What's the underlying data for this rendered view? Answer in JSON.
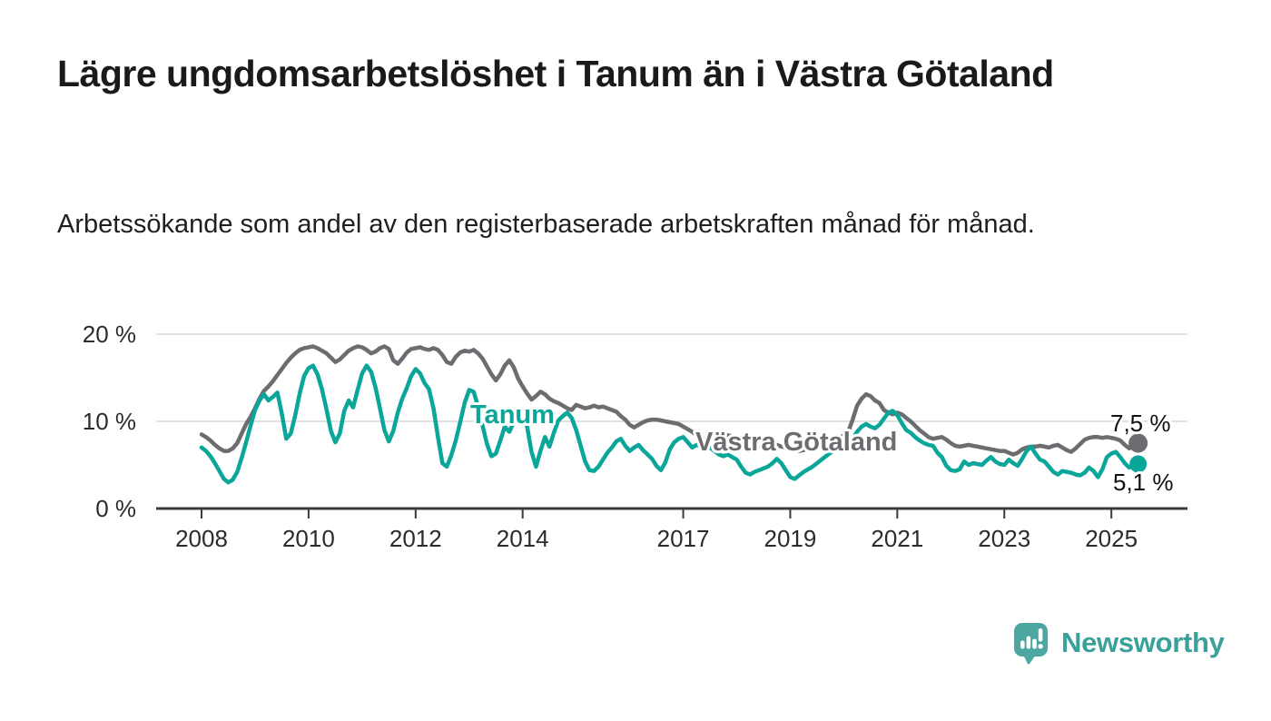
{
  "page": {
    "title": "Lägre ungdomsarbetslöshet i Tanum än i Västra Götaland",
    "subtitle": "Arbetssökande som andel av den registerbaserade arbetskraften månad för månad."
  },
  "chart_data": {
    "type": "line",
    "unit": "%",
    "x_start": {
      "year": 2008,
      "month": 1
    },
    "x_interval": "monthly",
    "x_end": {
      "year": 2025,
      "month": 7
    },
    "ylim": [
      0,
      20
    ],
    "y_tick_values": [
      0,
      10,
      20
    ],
    "y_tick_labels": [
      "0 %",
      "10 %",
      "20 %"
    ],
    "x_tick_years": [
      2008,
      2010,
      2012,
      2014,
      2017,
      2019,
      2021,
      2023,
      2025
    ],
    "grid": true,
    "axis_color": "#3b3b3b",
    "grid_color": "#d9d9d9",
    "tick_label_color": "#2b2b2b",
    "end_label_color": "#111111",
    "series": [
      {
        "name": "Västra Götaland",
        "color": "#6d6d71",
        "end_label": "7,5 %",
        "end_value": 7.5,
        "values": [
          8.5,
          8.2,
          7.8,
          7.3,
          6.9,
          6.6,
          6.6,
          6.9,
          7.5,
          8.6,
          9.7,
          10.5,
          11.5,
          12.6,
          13.5,
          14.0,
          14.6,
          15.3,
          16.0,
          16.7,
          17.3,
          17.8,
          18.2,
          18.4,
          18.5,
          18.6,
          18.4,
          18.1,
          17.8,
          17.3,
          16.8,
          17.1,
          17.6,
          18.1,
          18.4,
          18.6,
          18.5,
          18.2,
          17.8,
          18.0,
          18.4,
          18.6,
          18.3,
          17.0,
          16.6,
          17.2,
          17.9,
          18.3,
          18.4,
          18.5,
          18.3,
          18.2,
          18.4,
          18.2,
          17.6,
          16.8,
          16.6,
          17.4,
          17.9,
          18.1,
          18.0,
          18.2,
          17.8,
          17.2,
          16.3,
          15.4,
          14.7,
          15.4,
          16.4,
          17.0,
          16.2,
          14.9,
          14.0,
          13.2,
          12.5,
          12.9,
          13.4,
          13.1,
          12.6,
          12.3,
          12.1,
          11.8,
          11.5,
          11.3,
          11.9,
          11.7,
          11.5,
          11.6,
          11.8,
          11.6,
          11.7,
          11.5,
          11.3,
          11.1,
          10.6,
          10.2,
          9.6,
          9.3,
          9.6,
          9.9,
          10.1,
          10.2,
          10.2,
          10.1,
          10.0,
          9.9,
          9.8,
          9.7,
          9.4,
          9.1,
          8.8,
          8.4,
          8.1,
          7.9,
          7.8,
          8.1,
          8.4,
          8.5,
          8.4,
          8.3,
          8.0,
          7.8,
          7.6,
          7.4,
          7.2,
          7.1,
          7.2,
          7.3,
          7.4,
          7.3,
          7.1,
          7.0,
          6.9,
          6.7,
          6.6,
          6.7,
          6.9,
          7.0,
          7.1,
          7.2,
          7.3,
          7.5,
          7.7,
          8.1,
          8.4,
          8.8,
          10.2,
          11.8,
          12.6,
          13.1,
          12.9,
          12.4,
          12.1,
          11.3,
          11.0,
          10.8,
          11.0,
          10.8,
          10.4,
          10.0,
          9.5,
          9.0,
          8.6,
          8.2,
          8.0,
          8.1,
          8.2,
          7.9,
          7.5,
          7.2,
          7.1,
          7.2,
          7.3,
          7.2,
          7.1,
          7.0,
          6.9,
          6.8,
          6.7,
          6.6,
          6.6,
          6.4,
          6.2,
          6.4,
          6.8,
          7.0,
          7.1,
          7.1,
          7.2,
          7.1,
          7.0,
          7.2,
          7.3,
          7.0,
          6.7,
          6.5,
          6.9,
          7.4,
          7.9,
          8.1,
          8.2,
          8.2,
          8.1,
          8.2,
          8.1,
          8.0,
          7.8,
          7.3,
          6.9,
          7.2,
          7.5
        ]
      },
      {
        "name": "Tanum",
        "color": "#0ba69a",
        "end_label": "5,1 %",
        "end_value": 5.1,
        "values": [
          7.0,
          6.6,
          6.0,
          5.2,
          4.3,
          3.4,
          3.0,
          3.3,
          4.2,
          5.8,
          7.6,
          9.5,
          11.3,
          12.4,
          13.1,
          12.4,
          12.8,
          13.3,
          10.9,
          8.0,
          8.6,
          10.7,
          13.2,
          15.2,
          16.1,
          16.4,
          15.4,
          13.7,
          11.4,
          8.9,
          7.6,
          8.6,
          11.2,
          12.4,
          11.6,
          13.6,
          15.5,
          16.4,
          15.7,
          13.9,
          11.5,
          9.0,
          7.7,
          8.9,
          11.0,
          12.6,
          13.8,
          15.2,
          16.0,
          15.5,
          14.4,
          13.7,
          11.5,
          8.2,
          5.2,
          4.8,
          6.1,
          7.8,
          9.9,
          12.1,
          13.6,
          13.4,
          11.7,
          9.5,
          7.4,
          6.0,
          6.3,
          7.8,
          9.4,
          8.8,
          9.9,
          10.6,
          10.8,
          9.4,
          6.5,
          4.8,
          6.6,
          8.2,
          7.1,
          8.7,
          10.1,
          10.6,
          11.0,
          10.4,
          9.0,
          7.2,
          5.4,
          4.4,
          4.3,
          4.8,
          5.6,
          6.4,
          7.0,
          7.7,
          8.0,
          7.2,
          6.6,
          7.0,
          7.3,
          6.7,
          6.2,
          5.7,
          4.9,
          4.4,
          5.3,
          6.8,
          7.6,
          8.0,
          8.2,
          7.6,
          7.0,
          7.3,
          7.1,
          6.8,
          7.0,
          6.6,
          6.2,
          6.0,
          6.2,
          5.9,
          5.6,
          4.8,
          4.1,
          3.9,
          4.2,
          4.4,
          4.6,
          4.8,
          5.2,
          5.7,
          5.2,
          4.4,
          3.6,
          3.4,
          3.8,
          4.2,
          4.5,
          4.8,
          5.2,
          5.6,
          6.0,
          6.4,
          6.7,
          6.9,
          7.1,
          7.4,
          8.0,
          8.8,
          9.4,
          9.7,
          9.4,
          9.2,
          9.6,
          10.3,
          11.0,
          11.2,
          10.7,
          9.8,
          9.0,
          8.7,
          8.2,
          7.8,
          7.5,
          7.3,
          7.2,
          6.4,
          5.9,
          4.9,
          4.4,
          4.3,
          4.5,
          5.4,
          5.0,
          5.2,
          5.1,
          5.0,
          5.5,
          5.9,
          5.4,
          5.1,
          5.0,
          5.6,
          5.2,
          4.9,
          5.7,
          6.6,
          7.1,
          6.3,
          5.6,
          5.4,
          4.8,
          4.2,
          3.9,
          4.3,
          4.2,
          4.1,
          3.9,
          3.8,
          4.1,
          4.7,
          4.3,
          3.6,
          4.5,
          5.9,
          6.3,
          6.5,
          5.9,
          5.2,
          4.7,
          4.9,
          5.1
        ]
      }
    ]
  },
  "logo": {
    "text": "Newsworthy",
    "icon_color": "#4ba7a0",
    "text_color": "#39a09a"
  }
}
